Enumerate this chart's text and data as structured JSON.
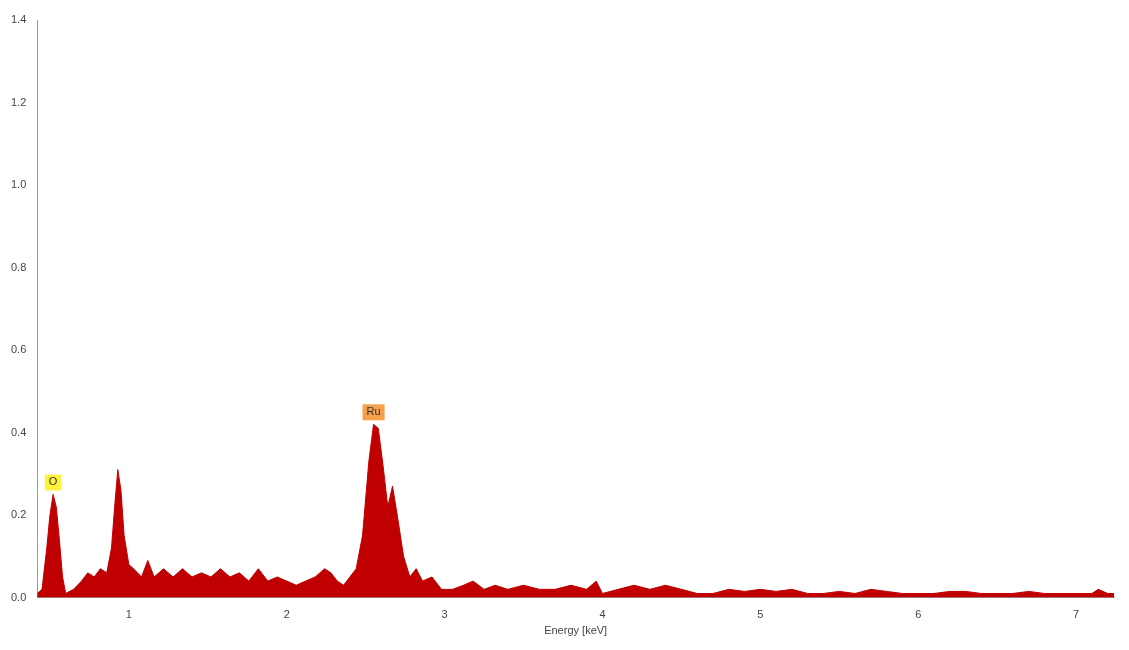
{
  "chart_data": {
    "type": "area",
    "xlabel": "Energy [keV]",
    "xlim": [
      0.42,
      7.24
    ],
    "xticks": [
      1,
      2,
      3,
      4,
      5,
      6,
      7
    ],
    "ylim": [
      0,
      1.4
    ],
    "yticks": [
      {
        "value": 0,
        "label": "0.0"
      },
      0.2,
      0.4,
      0.6,
      0.8,
      {
        "value": 1,
        "label": "1.0"
      },
      1.2,
      1.4
    ],
    "grid": false,
    "legend": false,
    "annotations": [
      {
        "text": "O",
        "x": 0.52,
        "y": 0.25
      },
      {
        "text": "Ru",
        "x": 2.55,
        "y": 0.42
      }
    ],
    "series": [
      {
        "color": "#c00000",
        "x": [
          0.42,
          0.45,
          0.48,
          0.5,
          0.52,
          0.54,
          0.56,
          0.58,
          0.6,
          0.65,
          0.7,
          0.74,
          0.78,
          0.82,
          0.86,
          0.89,
          0.91,
          0.93,
          0.95,
          0.97,
          1.0,
          1.03,
          1.08,
          1.12,
          1.16,
          1.22,
          1.28,
          1.34,
          1.4,
          1.46,
          1.52,
          1.58,
          1.64,
          1.7,
          1.76,
          1.82,
          1.88,
          1.94,
          2.0,
          2.06,
          2.12,
          2.18,
          2.24,
          2.28,
          2.32,
          2.36,
          2.4,
          2.44,
          2.48,
          2.52,
          2.55,
          2.58,
          2.61,
          2.64,
          2.67,
          2.7,
          2.74,
          2.78,
          2.82,
          2.86,
          2.92,
          2.98,
          3.05,
          3.12,
          3.18,
          3.25,
          3.32,
          3.4,
          3.5,
          3.6,
          3.7,
          3.8,
          3.9,
          3.96,
          4.0,
          4.1,
          4.2,
          4.3,
          4.4,
          4.5,
          4.6,
          4.7,
          4.8,
          4.9,
          5.0,
          5.1,
          5.2,
          5.3,
          5.4,
          5.5,
          5.6,
          5.7,
          5.8,
          5.9,
          6.0,
          6.1,
          6.2,
          6.3,
          6.4,
          6.5,
          6.6,
          6.7,
          6.8,
          6.9,
          7.0,
          7.1,
          7.14,
          7.2,
          7.24
        ],
        "values": [
          0.01,
          0.02,
          0.12,
          0.2,
          0.25,
          0.22,
          0.14,
          0.05,
          0.01,
          0.02,
          0.04,
          0.06,
          0.05,
          0.07,
          0.06,
          0.12,
          0.22,
          0.31,
          0.26,
          0.15,
          0.08,
          0.07,
          0.05,
          0.09,
          0.05,
          0.07,
          0.05,
          0.07,
          0.05,
          0.06,
          0.05,
          0.07,
          0.05,
          0.06,
          0.04,
          0.07,
          0.04,
          0.05,
          0.04,
          0.03,
          0.04,
          0.05,
          0.07,
          0.06,
          0.04,
          0.03,
          0.05,
          0.07,
          0.15,
          0.33,
          0.42,
          0.41,
          0.32,
          0.22,
          0.27,
          0.2,
          0.1,
          0.05,
          0.07,
          0.04,
          0.05,
          0.02,
          0.02,
          0.03,
          0.04,
          0.02,
          0.03,
          0.02,
          0.03,
          0.02,
          0.02,
          0.03,
          0.02,
          0.04,
          0.01,
          0.02,
          0.03,
          0.02,
          0.03,
          0.02,
          0.01,
          0.01,
          0.02,
          0.015,
          0.02,
          0.015,
          0.02,
          0.01,
          0.01,
          0.015,
          0.01,
          0.02,
          0.015,
          0.01,
          0.01,
          0.01,
          0.015,
          0.015,
          0.01,
          0.01,
          0.01,
          0.015,
          0.01,
          0.01,
          0.01,
          0.01,
          0.02,
          0.01,
          0.01
        ]
      }
    ]
  }
}
